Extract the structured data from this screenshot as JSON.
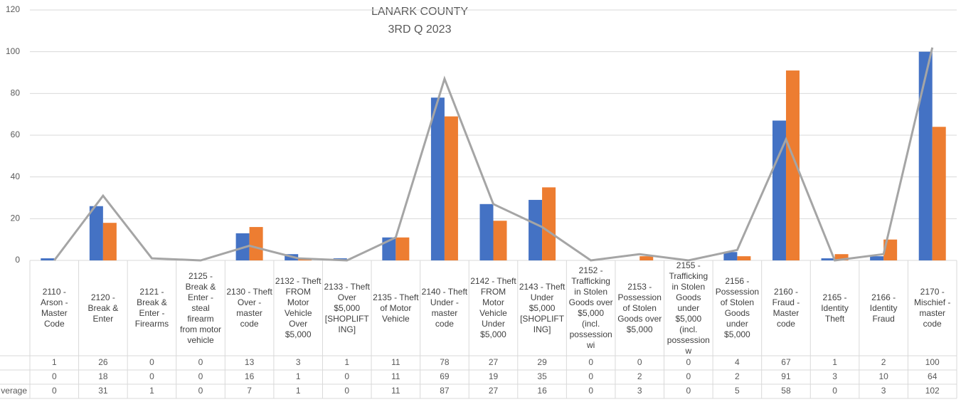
{
  "chart_data": {
    "type": "bar",
    "title": "LANARK COUNTY",
    "subtitle": "3RD Q 2023",
    "categories": [
      "2110 - Arson - Master Code",
      "2120 - Break & Enter",
      "2121 - Break & Enter - Firearms",
      "2125 - Break & Enter - steal firearm from motor vehicle",
      "2130 - Theft Over - master code",
      "2132 - Theft FROM Motor Vehicle Over $5,000",
      "2133 - Theft Over $5,000 [SHOPLIFTING]",
      "2135 - Theft of Motor Vehicle",
      "2140 - Theft Under - master code",
      "2142 - Theft FROM Motor Vehicle Under $5,000",
      "2143 - Theft Under $5,000 [SHOPLIFTING]",
      "2152 - Trafficking in Stolen Goods over $5,000 (incl. possession wi",
      "2153 - Possession of Stolen Goods over $5,000",
      "2155 - Trafficking in Stolen Goods under $5,000 (incl. possession w",
      "2156 - Possession of Stolen Goods under $5,000",
      "2160 - Fraud - Master code",
      "2165 - Identity Theft",
      "2166 - Identity Fraud",
      "2170 - Mischief - master code"
    ],
    "series": [
      {
        "color": "#4472c4",
        "values": [
          1,
          26,
          0,
          0,
          13,
          3,
          1,
          11,
          78,
          27,
          29,
          0,
          0,
          0,
          4,
          67,
          1,
          2,
          100
        ]
      },
      {
        "color": "#ed7d31",
        "values": [
          0,
          18,
          0,
          0,
          16,
          1,
          0,
          11,
          69,
          19,
          35,
          0,
          2,
          0,
          2,
          91,
          3,
          10,
          64
        ]
      },
      {
        "name": "verage",
        "type": "line",
        "color": "#a5a5a5",
        "values": [
          0,
          31,
          1,
          0,
          7,
          1,
          0,
          11,
          87,
          27,
          16,
          0,
          3,
          0,
          5,
          58,
          0,
          3,
          102
        ]
      }
    ],
    "ylim": [
      0,
      120
    ],
    "yticks": [
      0,
      20,
      40,
      60,
      80,
      100,
      120
    ],
    "grid": true
  }
}
